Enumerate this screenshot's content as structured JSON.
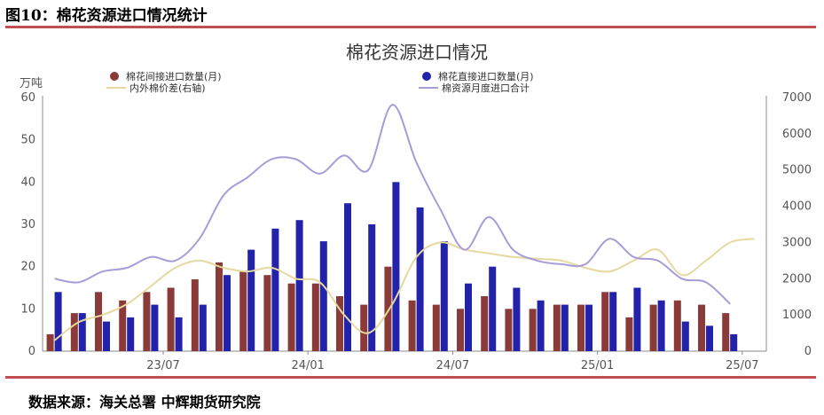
{
  "figure": {
    "title": "图10：棉花资源进口情况统计",
    "source": "数据来源：海关总署 中辉期货研究院"
  },
  "chart_data": {
    "type": "bar",
    "title": "棉花资源进口情况",
    "y_left_label": "万吨",
    "y_left_ticks": [
      "0",
      "10",
      "20",
      "30",
      "40",
      "50",
      "60"
    ],
    "y_right_ticks": [
      "0",
      "1000",
      "2000",
      "3000",
      "4000",
      "5000",
      "6000",
      "7000"
    ],
    "ylim_left": [
      0,
      60
    ],
    "ylim_right": [
      0,
      7000
    ],
    "x_ticks": [
      {
        "index": 4.5,
        "label": "23/07"
      },
      {
        "index": 10.5,
        "label": "24/01"
      },
      {
        "index": 16.5,
        "label": "24/07"
      },
      {
        "index": 22.5,
        "label": "25/01"
      },
      {
        "index": 28.5,
        "label": "25/07"
      }
    ],
    "legend_position": "top",
    "series": [
      {
        "name": "棉花间接进口数量(月)",
        "kind": "bar",
        "axis": "left",
        "color": "#8b3a3a",
        "values": [
          4,
          9,
          14,
          12,
          14,
          15,
          17,
          21,
          19,
          18,
          16,
          16,
          13,
          11,
          20,
          12,
          11,
          10,
          13,
          10,
          10,
          11,
          11,
          14,
          8,
          11,
          12,
          11,
          9,
          null
        ]
      },
      {
        "name": "棉花直接进口数量(月)",
        "kind": "bar",
        "axis": "left",
        "color": "#2222aa",
        "values": [
          14,
          9,
          7,
          8,
          11,
          8,
          11,
          18,
          24,
          29,
          31,
          26,
          35,
          30,
          40,
          34,
          26,
          16,
          20,
          15,
          12,
          11,
          11,
          14,
          15,
          12,
          7,
          6,
          4,
          null
        ]
      },
      {
        "name": "内外棉价差(右轴)",
        "kind": "line",
        "axis": "right",
        "color": "#e6d9a0",
        "values": [
          300,
          800,
          1000,
          1300,
          1800,
          2300,
          2500,
          2300,
          2200,
          2300,
          2000,
          1900,
          1000,
          500,
          1300,
          2600,
          3000,
          2800,
          2700,
          2600,
          2550,
          2500,
          2300,
          2200,
          2500,
          2800,
          2100,
          2500,
          3000,
          3100
        ]
      },
      {
        "name": "棉资源月度进口合计",
        "kind": "line",
        "axis": "right",
        "color": "#a89cd8",
        "values": [
          2000,
          1900,
          2200,
          2300,
          2600,
          2500,
          3100,
          4300,
          4800,
          5300,
          5300,
          4900,
          5400,
          5000,
          6800,
          5200,
          3900,
          2800,
          3700,
          2800,
          2500,
          2400,
          2400,
          3100,
          2600,
          2500,
          2000,
          1900,
          1300,
          null
        ]
      }
    ]
  }
}
